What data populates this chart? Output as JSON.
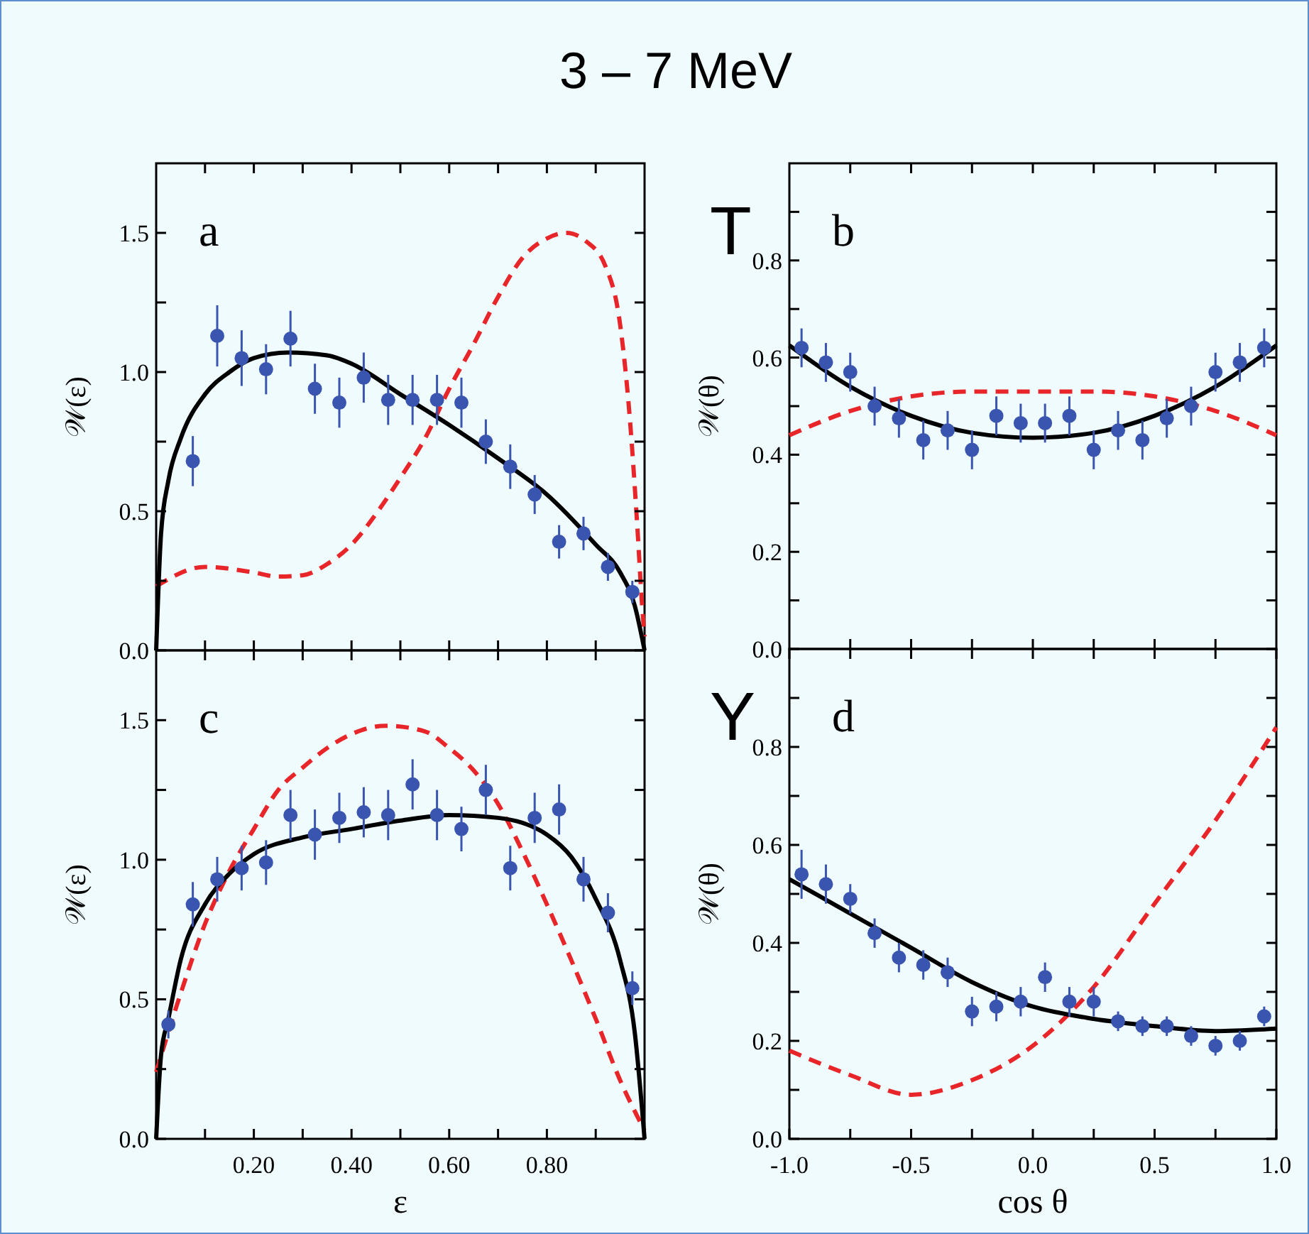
{
  "chart_data": [
    {
      "type": "scatter",
      "title": "3 – 7 MeV",
      "ylabel": "𝒲(ε)",
      "annotations": [
        "a"
      ],
      "xlim": [
        0,
        1
      ],
      "ylim": [
        0,
        1.75
      ],
      "tick_labels": "y",
      "grid": false,
      "xticks": [
        {
          "value": 0.1,
          "label": null
        },
        {
          "value": 0.2,
          "label": null
        },
        {
          "value": 0.3,
          "label": null
        },
        {
          "value": 0.4,
          "label": null
        },
        {
          "value": 0.5,
          "label": null
        },
        {
          "value": 0.6,
          "label": null
        },
        {
          "value": 0.7,
          "label": null
        },
        {
          "value": 0.8,
          "label": null
        },
        {
          "value": 0.9,
          "label": null
        }
      ],
      "yticks": [
        {
          "value": 0,
          "label": "0.0"
        },
        {
          "value": 0.25,
          "label": null
        },
        {
          "value": 0.5,
          "label": "0.5"
        },
        {
          "value": 0.75,
          "label": null
        },
        {
          "value": 1,
          "label": "1.0"
        },
        {
          "value": 1.25,
          "label": null
        },
        {
          "value": 1.5,
          "label": "1.5"
        }
      ],
      "series": [
        {
          "type": "line",
          "color": "#e8262a",
          "line_style": "dashed",
          "marker": "none",
          "x": [
            0,
            0.1,
            0.2,
            0.25,
            0.3,
            0.35,
            0.4,
            0.45,
            0.5,
            0.55,
            0.6,
            0.65,
            0.7,
            0.75,
            0.8,
            0.84,
            0.88,
            0.92,
            0.95,
            0.97,
            0.985,
            0.995,
            1
          ],
          "values": [
            0.23,
            0.3,
            0.28,
            0.265,
            0.27,
            0.31,
            0.38,
            0.49,
            0.62,
            0.76,
            0.94,
            1.1,
            1.27,
            1.41,
            1.48,
            1.5,
            1.47,
            1.38,
            1.17,
            0.83,
            0.45,
            0.16,
            0.05
          ]
        },
        {
          "type": "line",
          "color": "#000000",
          "line_style": "solid",
          "marker": "none",
          "x": [
            0,
            0.01,
            0.025,
            0.05,
            0.1,
            0.15,
            0.2,
            0.27,
            0.35,
            0.4,
            0.5,
            0.6,
            0.7,
            0.8,
            0.9,
            0.95,
            0.98,
            1
          ],
          "values": [
            0,
            0.42,
            0.61,
            0.76,
            0.92,
            1.0,
            1.05,
            1.07,
            1.06,
            1.03,
            0.92,
            0.81,
            0.69,
            0.56,
            0.38,
            0.28,
            0.16,
            0
          ]
        },
        {
          "type": "scatter",
          "color": "#3a55b0",
          "marker": "circle",
          "x": [
            0.075,
            0.125,
            0.175,
            0.225,
            0.275,
            0.325,
            0.375,
            0.425,
            0.475,
            0.525,
            0.575,
            0.625,
            0.675,
            0.725,
            0.775,
            0.825,
            0.875,
            0.925,
            0.975
          ],
          "values": [
            0.68,
            1.13,
            1.05,
            1.01,
            1.12,
            0.94,
            0.89,
            0.98,
            0.9,
            0.9,
            0.9,
            0.89,
            0.75,
            0.66,
            0.56,
            0.39,
            0.42,
            0.3,
            0.21
          ],
          "errors": [
            0.09,
            0.11,
            0.1,
            0.09,
            0.1,
            0.09,
            0.09,
            0.09,
            0.09,
            0.09,
            0.09,
            0.09,
            0.08,
            0.08,
            0.07,
            0.06,
            0.06,
            0.05,
            0.04
          ]
        }
      ]
    },
    {
      "type": "scatter",
      "ylabel": "𝒲(θ)",
      "annotations": [
        "b",
        "T"
      ],
      "xlim": [
        -1,
        1
      ],
      "ylim": [
        0,
        1
      ],
      "tick_labels": "y",
      "grid": false,
      "xticks": [
        {
          "value": -0.75,
          "label": null
        },
        {
          "value": -0.5,
          "label": null
        },
        {
          "value": -0.25,
          "label": null
        },
        {
          "value": 0,
          "label": null
        },
        {
          "value": 0.25,
          "label": null
        },
        {
          "value": 0.5,
          "label": null
        },
        {
          "value": 0.75,
          "label": null
        }
      ],
      "yticks": [
        {
          "value": 0,
          "label": "0.0"
        },
        {
          "value": 0.1,
          "label": null
        },
        {
          "value": 0.2,
          "label": "0.2"
        },
        {
          "value": 0.3,
          "label": null
        },
        {
          "value": 0.4,
          "label": "0.4"
        },
        {
          "value": 0.5,
          "label": null
        },
        {
          "value": 0.6,
          "label": "0.6"
        },
        {
          "value": 0.7,
          "label": null
        },
        {
          "value": 0.8,
          "label": "0.8"
        },
        {
          "value": 0.9,
          "label": null
        }
      ],
      "series": [
        {
          "type": "line",
          "color": "#e8262a",
          "line_style": "dashed",
          "marker": "none",
          "x": [
            -1,
            -0.75,
            -0.5,
            -0.25,
            0,
            0.25,
            0.5,
            0.75,
            1
          ],
          "values": [
            0.44,
            0.49,
            0.52,
            0.53,
            0.53,
            0.53,
            0.52,
            0.49,
            0.44
          ]
        },
        {
          "type": "line",
          "color": "#000000",
          "line_style": "solid",
          "marker": "none",
          "x": [
            -1,
            -0.75,
            -0.5,
            -0.25,
            0,
            0.25,
            0.5,
            0.75,
            1
          ],
          "values": [
            0.625,
            0.54,
            0.48,
            0.445,
            0.435,
            0.445,
            0.48,
            0.54,
            0.625
          ]
        },
        {
          "type": "scatter",
          "color": "#3a55b0",
          "marker": "circle",
          "x": [
            -0.95,
            -0.85,
            -0.75,
            -0.65,
            -0.55,
            -0.45,
            -0.35,
            -0.25,
            -0.15,
            -0.05,
            0.05,
            0.15,
            0.25,
            0.35,
            0.45,
            0.55,
            0.65,
            0.75,
            0.85,
            0.95
          ],
          "values": [
            0.62,
            0.59,
            0.57,
            0.5,
            0.475,
            0.43,
            0.45,
            0.41,
            0.48,
            0.465,
            0.465,
            0.48,
            0.41,
            0.45,
            0.43,
            0.475,
            0.5,
            0.57,
            0.59,
            0.62
          ],
          "errors": [
            0.04,
            0.04,
            0.04,
            0.04,
            0.04,
            0.04,
            0.04,
            0.04,
            0.04,
            0.04,
            0.04,
            0.04,
            0.04,
            0.04,
            0.04,
            0.04,
            0.04,
            0.04,
            0.04,
            0.04
          ]
        }
      ]
    },
    {
      "type": "scatter",
      "xlabel": "ε",
      "ylabel": "𝒲(ε)",
      "annotations": [
        "c"
      ],
      "xlim": [
        0,
        1
      ],
      "ylim": [
        0,
        1.75
      ],
      "grid": false,
      "xticks": [
        {
          "value": 0.1,
          "label": null
        },
        {
          "value": 0.2,
          "label": "0.20"
        },
        {
          "value": 0.3,
          "label": null
        },
        {
          "value": 0.4,
          "label": "0.40"
        },
        {
          "value": 0.5,
          "label": null
        },
        {
          "value": 0.6,
          "label": "0.60"
        },
        {
          "value": 0.7,
          "label": null
        },
        {
          "value": 0.8,
          "label": "0.80"
        },
        {
          "value": 0.9,
          "label": null
        }
      ],
      "yticks": [
        {
          "value": 0,
          "label": "0.0"
        },
        {
          "value": 0.25,
          "label": null
        },
        {
          "value": 0.5,
          "label": "0.5"
        },
        {
          "value": 0.75,
          "label": null
        },
        {
          "value": 1,
          "label": "1.0"
        },
        {
          "value": 1.25,
          "label": null
        },
        {
          "value": 1.5,
          "label": "1.5"
        }
      ],
      "series": [
        {
          "type": "line",
          "color": "#e8262a",
          "line_style": "dashed",
          "marker": "none",
          "x": [
            0,
            0.05,
            0.1,
            0.15,
            0.2,
            0.25,
            0.3,
            0.35,
            0.4,
            0.47,
            0.55,
            0.6,
            0.65,
            0.7,
            0.75,
            0.8,
            0.85,
            0.9,
            0.95,
            1
          ],
          "values": [
            0.24,
            0.52,
            0.77,
            0.96,
            1.11,
            1.25,
            1.33,
            1.4,
            1.45,
            1.48,
            1.46,
            1.4,
            1.32,
            1.2,
            1.03,
            0.84,
            0.64,
            0.43,
            0.21,
            0.03
          ]
        },
        {
          "type": "line",
          "color": "#000000",
          "line_style": "solid",
          "marker": "none",
          "x": [
            0,
            0.01,
            0.025,
            0.05,
            0.1,
            0.15,
            0.2,
            0.3,
            0.4,
            0.5,
            0.6,
            0.7,
            0.8,
            0.85,
            0.9,
            0.95,
            0.98,
            1
          ],
          "values": [
            0,
            0.3,
            0.43,
            0.64,
            0.84,
            0.95,
            1.02,
            1.08,
            1.11,
            1.14,
            1.16,
            1.15,
            1.09,
            1.01,
            0.86,
            0.64,
            0.38,
            0
          ]
        },
        {
          "type": "scatter",
          "color": "#3a55b0",
          "marker": "circle",
          "x": [
            0.025,
            0.075,
            0.125,
            0.175,
            0.225,
            0.275,
            0.325,
            0.375,
            0.425,
            0.475,
            0.525,
            0.575,
            0.625,
            0.675,
            0.725,
            0.775,
            0.825,
            0.875,
            0.925,
            0.975
          ],
          "values": [
            0.41,
            0.84,
            0.93,
            0.97,
            0.99,
            1.16,
            1.09,
            1.15,
            1.17,
            1.16,
            1.27,
            1.16,
            1.11,
            1.25,
            0.97,
            1.15,
            1.18,
            0.93,
            0.81,
            0.54
          ],
          "errors": [
            0.05,
            0.08,
            0.08,
            0.08,
            0.08,
            0.09,
            0.09,
            0.09,
            0.09,
            0.09,
            0.09,
            0.09,
            0.08,
            0.09,
            0.08,
            0.09,
            0.09,
            0.08,
            0.07,
            0.06
          ]
        }
      ]
    },
    {
      "type": "scatter",
      "xlabel": "cos θ",
      "ylabel": "𝒲(θ)",
      "annotations": [
        "d",
        "Y"
      ],
      "xlim": [
        -1,
        1
      ],
      "ylim": [
        0,
        1
      ],
      "grid": false,
      "xticks": [
        {
          "value": -1,
          "label": "-1.0"
        },
        {
          "value": -0.75,
          "label": null
        },
        {
          "value": -0.5,
          "label": "-0.5"
        },
        {
          "value": -0.25,
          "label": null
        },
        {
          "value": 0,
          "label": "0.0"
        },
        {
          "value": 0.25,
          "label": null
        },
        {
          "value": 0.5,
          "label": "0.5"
        },
        {
          "value": 0.75,
          "label": null
        },
        {
          "value": 1,
          "label": "1.0"
        }
      ],
      "yticks": [
        {
          "value": 0,
          "label": "0.0"
        },
        {
          "value": 0.1,
          "label": null
        },
        {
          "value": 0.2,
          "label": "0.2"
        },
        {
          "value": 0.3,
          "label": null
        },
        {
          "value": 0.4,
          "label": "0.4"
        },
        {
          "value": 0.5,
          "label": null
        },
        {
          "value": 0.6,
          "label": "0.6"
        },
        {
          "value": 0.7,
          "label": null
        },
        {
          "value": 0.8,
          "label": "0.8"
        },
        {
          "value": 0.9,
          "label": null
        }
      ],
      "series": [
        {
          "type": "line",
          "color": "#e8262a",
          "line_style": "dashed",
          "marker": "none",
          "x": [
            -1,
            -0.75,
            -0.5,
            -0.25,
            0,
            0.25,
            0.5,
            0.75,
            1
          ],
          "values": [
            0.18,
            0.13,
            0.09,
            0.12,
            0.19,
            0.31,
            0.48,
            0.65,
            0.84
          ]
        },
        {
          "type": "line",
          "color": "#000000",
          "line_style": "solid",
          "marker": "none",
          "x": [
            -1,
            -0.75,
            -0.5,
            -0.25,
            0,
            0.25,
            0.5,
            0.75,
            1
          ],
          "values": [
            0.53,
            0.46,
            0.39,
            0.32,
            0.27,
            0.245,
            0.23,
            0.22,
            0.225
          ]
        },
        {
          "type": "scatter",
          "color": "#3a55b0",
          "marker": "circle",
          "x": [
            -0.95,
            -0.85,
            -0.75,
            -0.65,
            -0.55,
            -0.45,
            -0.35,
            -0.25,
            -0.15,
            -0.05,
            0.05,
            0.15,
            0.25,
            0.35,
            0.45,
            0.55,
            0.65,
            0.75,
            0.85,
            0.95
          ],
          "values": [
            0.54,
            0.52,
            0.49,
            0.42,
            0.37,
            0.355,
            0.34,
            0.26,
            0.27,
            0.28,
            0.33,
            0.28,
            0.28,
            0.24,
            0.23,
            0.23,
            0.21,
            0.19,
            0.2,
            0.25
          ],
          "errors": [
            0.05,
            0.04,
            0.03,
            0.03,
            0.03,
            0.03,
            0.03,
            0.03,
            0.03,
            0.03,
            0.03,
            0.03,
            0.03,
            0.02,
            0.02,
            0.02,
            0.02,
            0.02,
            0.02,
            0.02
          ]
        }
      ]
    }
  ]
}
